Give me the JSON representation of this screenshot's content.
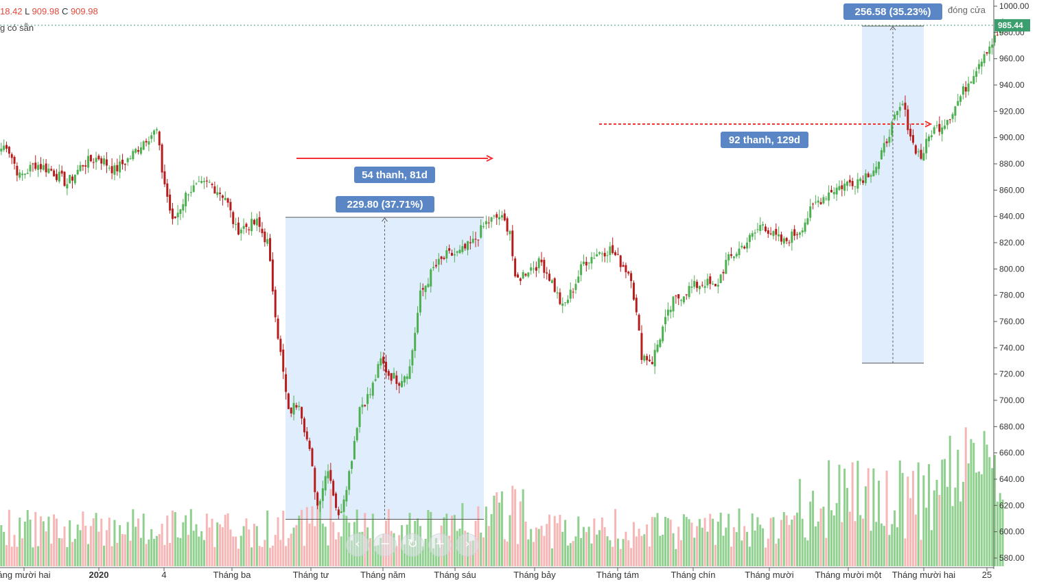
{
  "header": {
    "ohlc_prefix": "18.42",
    "low_key": "L",
    "low_value": "909.98",
    "close_key": "C",
    "close_value": "909.98",
    "subtitle": "g có sẵn",
    "right_text": "đóng cửa"
  },
  "price_scale": {
    "ticks": [
      "1000.00",
      "980.00",
      "960.00",
      "940.00",
      "920.00",
      "900.00",
      "880.00",
      "860.00",
      "840.00",
      "820.00",
      "800.00",
      "780.00",
      "760.00",
      "740.00",
      "720.00",
      "700.00",
      "680.00",
      "660.00",
      "640.00",
      "620.00",
      "600.00",
      "580.00"
    ],
    "last_price": "985.44"
  },
  "time_scale": {
    "labels": [
      "áng mười hai",
      "2020",
      "4",
      "Tháng ba",
      "Tháng tư",
      "Tháng năm",
      "Tháng sáu",
      "Tháng bảy",
      "Tháng tám",
      "Tháng chín",
      "Tháng mười",
      "Tháng mười một",
      "Tháng mười hai",
      "25"
    ]
  },
  "annotations": {
    "range1_price": "229.80 (37.71%)",
    "range1_bars": "54 thanh, 81d",
    "range2_price": "256.58 (35.23%)",
    "range2_bars": "92 thanh, 129d"
  },
  "nav_buttons": [
    "‹",
    "−",
    "↻",
    "+",
    "›"
  ],
  "colors": {
    "up": "#4caf50",
    "down": "#b71c1c",
    "vol_up": "#8fd08f",
    "vol_down": "#f7b6b6",
    "measure_fill": "#dbeafb",
    "label_bg": "#5a86c5",
    "arrow": "#f23030",
    "last_price_bg": "#3b9e6e"
  },
  "chart_data": {
    "type": "candlestick",
    "x_start": "2019-12",
    "x_end": "2020-12",
    "ylim": [
      580,
      1000
    ],
    "anchors": [
      [
        0,
        890
      ],
      [
        3,
        895
      ],
      [
        8,
        870
      ],
      [
        14,
        880
      ],
      [
        20,
        875
      ],
      [
        26,
        865
      ],
      [
        32,
        880
      ],
      [
        38,
        885
      ],
      [
        44,
        875
      ],
      [
        50,
        885
      ],
      [
        56,
        900
      ],
      [
        60,
        905
      ],
      [
        62,
        875
      ],
      [
        66,
        835
      ],
      [
        72,
        860
      ],
      [
        80,
        865
      ],
      [
        86,
        855
      ],
      [
        90,
        830
      ],
      [
        98,
        835
      ],
      [
        102,
        820
      ],
      [
        106,
        750
      ],
      [
        110,
        690
      ],
      [
        114,
        700
      ],
      [
        118,
        660
      ],
      [
        121,
        620
      ],
      [
        125,
        650
      ],
      [
        129,
        610
      ],
      [
        133,
        645
      ],
      [
        137,
        695
      ],
      [
        141,
        705
      ],
      [
        145,
        730
      ],
      [
        148,
        720
      ],
      [
        152,
        715
      ],
      [
        156,
        725
      ],
      [
        160,
        780
      ],
      [
        165,
        800
      ],
      [
        170,
        810
      ],
      [
        175,
        812
      ],
      [
        180,
        820
      ],
      [
        185,
        835
      ],
      [
        190,
        840
      ],
      [
        194,
        830
      ],
      [
        196,
        790
      ],
      [
        201,
        800
      ],
      [
        206,
        805
      ],
      [
        210,
        790
      ],
      [
        214,
        770
      ],
      [
        218,
        785
      ],
      [
        222,
        805
      ],
      [
        227,
        812
      ],
      [
        232,
        815
      ],
      [
        236,
        805
      ],
      [
        240,
        795
      ],
      [
        244,
        735
      ],
      [
        248,
        730
      ],
      [
        252,
        755
      ],
      [
        256,
        775
      ],
      [
        262,
        785
      ],
      [
        268,
        790
      ],
      [
        272,
        785
      ],
      [
        276,
        805
      ],
      [
        281,
        815
      ],
      [
        286,
        825
      ],
      [
        290,
        835
      ],
      [
        294,
        825
      ],
      [
        298,
        820
      ],
      [
        304,
        830
      ],
      [
        310,
        850
      ],
      [
        316,
        860
      ],
      [
        322,
        865
      ],
      [
        328,
        870
      ],
      [
        334,
        880
      ],
      [
        338,
        905
      ],
      [
        343,
        925
      ],
      [
        347,
        895
      ],
      [
        350,
        885
      ],
      [
        354,
        905
      ],
      [
        358,
        910
      ],
      [
        362,
        920
      ],
      [
        366,
        935
      ],
      [
        370,
        950
      ],
      [
        374,
        965
      ],
      [
        378,
        975
      ],
      [
        381,
        985.44
      ]
    ],
    "range1": {
      "from_price": 609.5,
      "to_price": 839.3,
      "change": 229.8,
      "percent": 37.71,
      "bars": 54,
      "days": 81
    },
    "range2": {
      "from_price": 728.3,
      "to_price": 984.9,
      "change": 256.58,
      "percent": 35.23,
      "bars": 92,
      "days": 129
    },
    "last_price": 985.44
  }
}
